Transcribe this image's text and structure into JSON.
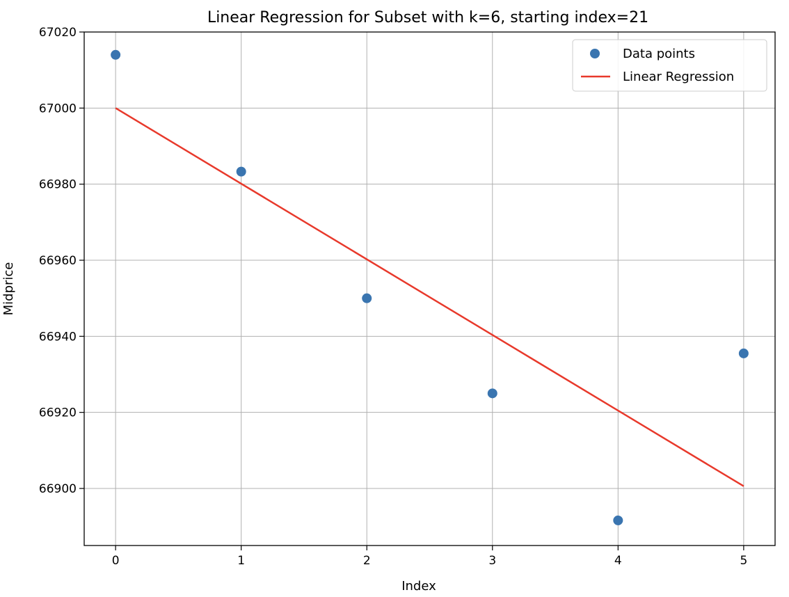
{
  "chart_data": {
    "type": "scatter",
    "title": "Linear Regression for Subset with k=6, starting index=21",
    "xlabel": "Index",
    "ylabel": "Midprice",
    "xlim": [
      -0.25,
      5.25
    ],
    "ylim": [
      66885,
      67020
    ],
    "xticks": [
      0,
      1,
      2,
      3,
      4,
      5
    ],
    "yticks": [
      66900,
      66920,
      66940,
      66960,
      66980,
      67000,
      67020
    ],
    "grid": true,
    "legend": "top-right",
    "series": [
      {
        "name": "Data points",
        "kind": "scatter",
        "color": "#3a75b0",
        "x": [
          0,
          1,
          2,
          3,
          4,
          5
        ],
        "y": [
          67014,
          66983.3,
          66950,
          66925,
          66891.6,
          66935.5
        ]
      },
      {
        "name": "Linear Regression",
        "kind": "line",
        "color": "#e8392b",
        "x": [
          0,
          5
        ],
        "y": [
          67000,
          66900.6
        ]
      }
    ]
  }
}
